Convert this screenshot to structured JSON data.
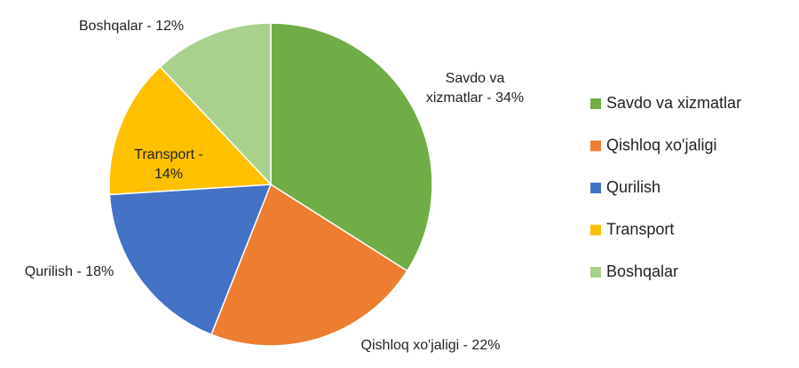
{
  "chart_data": {
    "type": "pie",
    "categories": [
      "Savdo va xizmatlar",
      "Qishloq xo'jaligi",
      "Qurilish",
      "Transport",
      "Boshqalar"
    ],
    "values": [
      34,
      22,
      18,
      14,
      12
    ],
    "value_labels": [
      "Savdo va xizmatlar - 34%",
      "Qishloq xo'jaligi - 22%",
      "Qurilish - 18%",
      "Transport - 14%",
      "Boshqalar - 12%"
    ],
    "colors": [
      "#70ad47",
      "#ed7d31",
      "#4472c4",
      "#ffc000",
      "#a9d18e"
    ],
    "legend": "right"
  }
}
